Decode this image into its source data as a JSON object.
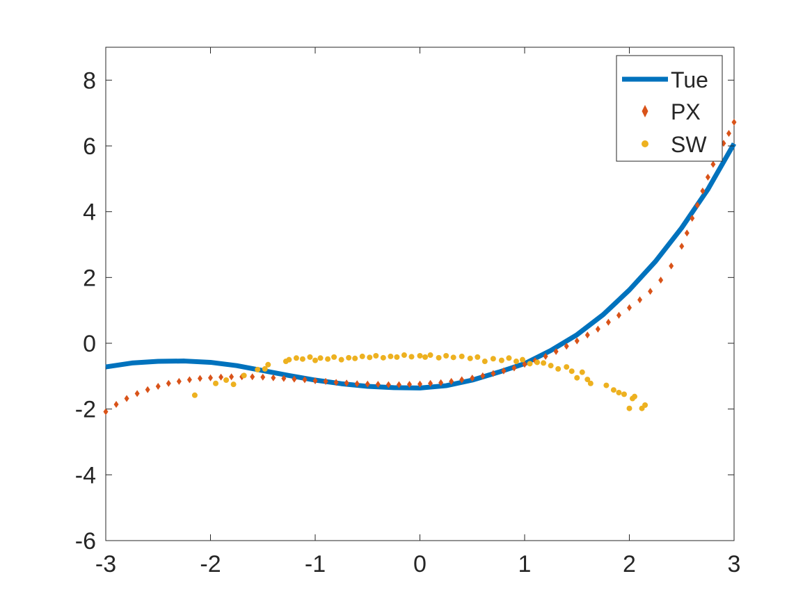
{
  "chart_data": {
    "type": "scatter",
    "xlim": [
      -3,
      3
    ],
    "ylim": [
      -6,
      9
    ],
    "xticks": [
      "-3",
      "-2",
      "-1",
      "0",
      "1",
      "2",
      "3"
    ],
    "yticks": [
      "-6",
      "-4",
      "-2",
      "0",
      "2",
      "4",
      "6",
      "8"
    ],
    "grid": false,
    "legend_position": "top-right",
    "colors": {
      "Tue": "#0072BD",
      "PX": "#D95319",
      "SW": "#EDB120"
    },
    "series": [
      {
        "name": "Tue",
        "style": "line",
        "x": [
          -3.0,
          -2.75,
          -2.5,
          -2.25,
          -2.0,
          -1.75,
          -1.5,
          -1.25,
          -1.0,
          -0.75,
          -0.5,
          -0.25,
          0.0,
          0.25,
          0.5,
          0.75,
          1.0,
          1.25,
          1.5,
          1.75,
          2.0,
          2.25,
          2.5,
          2.75,
          3.0
        ],
        "y": [
          -0.72,
          -0.6,
          -0.55,
          -0.54,
          -0.58,
          -0.68,
          -0.83,
          -0.98,
          -1.12,
          -1.23,
          -1.31,
          -1.35,
          -1.36,
          -1.29,
          -1.12,
          -0.88,
          -0.62,
          -0.22,
          0.26,
          0.87,
          1.62,
          2.49,
          3.51,
          4.68,
          6.07
        ]
      },
      {
        "name": "PX",
        "style": "diamond",
        "x": [
          -3.0,
          -2.9,
          -2.8,
          -2.7,
          -2.6,
          -2.5,
          -2.4,
          -2.3,
          -2.2,
          -2.1,
          -2.0,
          -1.9,
          -1.8,
          -1.7,
          -1.6,
          -1.5,
          -1.4,
          -1.3,
          -1.2,
          -1.1,
          -1.0,
          -0.9,
          -0.8,
          -0.7,
          -0.6,
          -0.5,
          -0.4,
          -0.3,
          -0.2,
          -0.1,
          0.0,
          0.1,
          0.2,
          0.3,
          0.4,
          0.5,
          0.6,
          0.7,
          0.8,
          0.9,
          1.0,
          1.1,
          1.2,
          1.3,
          1.4,
          1.5,
          1.6,
          1.7,
          1.8,
          1.9,
          2.0,
          2.1,
          2.2,
          2.3,
          2.4,
          2.5,
          2.55,
          2.6,
          2.65,
          2.7,
          2.75,
          2.8,
          2.85,
          2.9,
          2.95,
          3.0
        ],
        "y": [
          -2.08,
          -1.86,
          -1.68,
          -1.53,
          -1.41,
          -1.31,
          -1.22,
          -1.16,
          -1.11,
          -1.07,
          -1.05,
          -1.03,
          -1.02,
          -1.02,
          -1.02,
          -1.03,
          -1.05,
          -1.07,
          -1.09,
          -1.11,
          -1.14,
          -1.16,
          -1.19,
          -1.21,
          -1.23,
          -1.24,
          -1.25,
          -1.26,
          -1.26,
          -1.25,
          -1.24,
          -1.22,
          -1.2,
          -1.16,
          -1.11,
          -1.06,
          -0.99,
          -0.92,
          -0.84,
          -0.75,
          -0.64,
          -0.53,
          -0.4,
          -0.25,
          -0.09,
          0.07,
          0.25,
          0.43,
          0.64,
          0.85,
          1.08,
          1.32,
          1.58,
          1.92,
          2.35,
          2.95,
          3.35,
          3.8,
          4.2,
          4.63,
          5.05,
          5.44,
          5.78,
          6.08,
          6.38,
          6.72
        ]
      },
      {
        "name": "SW",
        "style": "dot",
        "x": [
          -2.15,
          -1.95,
          -1.85,
          -1.78,
          -1.68,
          -1.55,
          -1.48,
          -1.45,
          -1.28,
          -1.25,
          -1.18,
          -1.12,
          -1.05,
          -1.0,
          -0.95,
          -0.88,
          -0.82,
          -0.75,
          -0.68,
          -0.62,
          -0.55,
          -0.48,
          -0.42,
          -0.35,
          -0.28,
          -0.22,
          -0.15,
          -0.08,
          0.0,
          0.05,
          0.1,
          0.18,
          0.25,
          0.32,
          0.4,
          0.48,
          0.55,
          0.62,
          0.7,
          0.78,
          0.85,
          0.92,
          0.98,
          1.05,
          1.12,
          1.18,
          1.25,
          1.32,
          1.4,
          1.45,
          1.5,
          1.55,
          1.6,
          1.63,
          1.78,
          1.85,
          1.9,
          1.95,
          2.0,
          2.03,
          2.05,
          2.12,
          2.15
        ],
        "y": [
          -1.58,
          -1.22,
          -1.12,
          -1.25,
          -0.98,
          -0.8,
          -0.78,
          -0.65,
          -0.55,
          -0.5,
          -0.45,
          -0.48,
          -0.42,
          -0.52,
          -0.45,
          -0.48,
          -0.42,
          -0.5,
          -0.44,
          -0.46,
          -0.4,
          -0.43,
          -0.38,
          -0.44,
          -0.4,
          -0.42,
          -0.36,
          -0.41,
          -0.38,
          -0.42,
          -0.36,
          -0.44,
          -0.38,
          -0.43,
          -0.4,
          -0.46,
          -0.42,
          -0.55,
          -0.47,
          -0.52,
          -0.45,
          -0.55,
          -0.5,
          -0.62,
          -0.58,
          -0.6,
          -0.68,
          -0.78,
          -0.72,
          -0.85,
          -1.05,
          -0.88,
          -1.1,
          -1.22,
          -1.28,
          -1.42,
          -1.5,
          -1.55,
          -1.98,
          -1.68,
          -1.62,
          -1.98,
          -1.88
        ]
      }
    ]
  }
}
